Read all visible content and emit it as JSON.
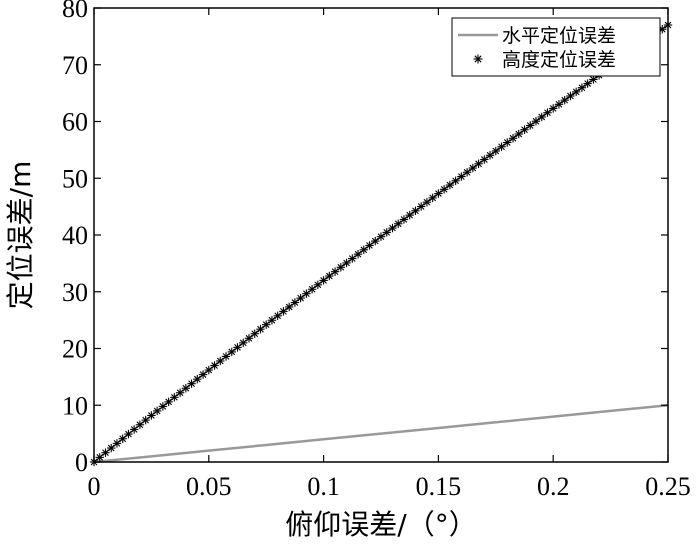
{
  "chart_data": {
    "type": "line",
    "title": "",
    "xlabel": "俯仰误差/（°）",
    "ylabel": "定位误差/m",
    "xlim": [
      0,
      0.25
    ],
    "ylim": [
      0,
      80
    ],
    "xticks": [
      0,
      0.05,
      0.1,
      0.15,
      0.2,
      0.25
    ],
    "xtick_labels": [
      "0",
      "0.05",
      "0.1",
      "0.15",
      "0.2",
      "0.25"
    ],
    "yticks": [
      0,
      10,
      20,
      30,
      40,
      50,
      60,
      70,
      80
    ],
    "ytick_labels": [
      "0",
      "10",
      "20",
      "30",
      "40",
      "50",
      "60",
      "70",
      "80"
    ],
    "grid": false,
    "legend_position": "top-right",
    "series": [
      {
        "name": "水平定位误差",
        "style": "solid-line",
        "color": "#999999",
        "x": [
          0,
          0.025,
          0.05,
          0.075,
          0.1,
          0.125,
          0.15,
          0.175,
          0.2,
          0.225,
          0.25
        ],
        "y": [
          0,
          1.0,
          2.0,
          3.0,
          4.0,
          5.0,
          6.0,
          7.0,
          8.0,
          9.0,
          10.0
        ]
      },
      {
        "name": "高度定位误差",
        "style": "star-markers",
        "color": "#000000",
        "x": [
          0,
          0.025,
          0.05,
          0.075,
          0.1,
          0.125,
          0.15,
          0.175,
          0.2,
          0.225,
          0.25
        ],
        "y": [
          0,
          8.2,
          16.2,
          24.2,
          32.0,
          39.7,
          47.3,
          54.8,
          62.3,
          69.6,
          77.0
        ]
      }
    ]
  }
}
